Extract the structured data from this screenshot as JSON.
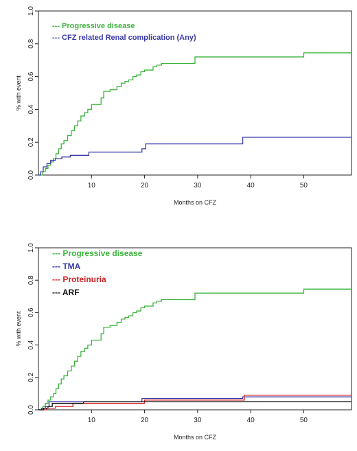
{
  "chart_data": [
    {
      "type": "line",
      "step": true,
      "xlabel": "Months on CFZ",
      "ylabel": "% with event",
      "xlim": [
        0,
        59
      ],
      "ylim": [
        0,
        1.0
      ],
      "xticks": [
        "10",
        "20",
        "30",
        "40",
        "50"
      ],
      "yticks": [
        "0.0",
        "0.2",
        "0.4",
        "0.6",
        "0.8",
        "1.0"
      ],
      "legend_position": "top-left",
      "series": [
        {
          "name": "Progressive disease",
          "legend_text": "--- Progressive disease",
          "color": "#3cb43c",
          "x": [
            0,
            0.8,
            1.3,
            1.8,
            2.3,
            2.8,
            3.3,
            3.8,
            4.3,
            4.8,
            5.5,
            6.2,
            6.8,
            7.4,
            8.0,
            8.7,
            9.3,
            10.0,
            11.8,
            12.3,
            13.5,
            14.8,
            15.6,
            16.3,
            17.0,
            17.8,
            18.5,
            19.3,
            20.0,
            21.6,
            22.3,
            23.2,
            29.5,
            50.0,
            59.0
          ],
          "y": [
            0,
            0.02,
            0.04,
            0.06,
            0.08,
            0.1,
            0.13,
            0.16,
            0.19,
            0.21,
            0.24,
            0.27,
            0.3,
            0.33,
            0.36,
            0.38,
            0.4,
            0.43,
            0.47,
            0.51,
            0.52,
            0.54,
            0.56,
            0.57,
            0.58,
            0.6,
            0.61,
            0.63,
            0.64,
            0.66,
            0.67,
            0.68,
            0.72,
            0.745,
            0.745
          ]
        },
        {
          "name": "CFZ related Renal complication (Any)",
          "legend_text": "--- CFZ related Renal complication (Any)",
          "color": "#3a3aa8",
          "x": [
            0,
            0.4,
            0.9,
            1.6,
            2.3,
            3.2,
            4.4,
            6.0,
            9.5,
            19.5,
            20.2,
            38.5,
            59.0
          ],
          "y": [
            0,
            0.02,
            0.05,
            0.07,
            0.09,
            0.1,
            0.11,
            0.12,
            0.14,
            0.16,
            0.19,
            0.23,
            0.23
          ]
        }
      ]
    },
    {
      "type": "line",
      "step": true,
      "xlabel": "Months on CFZ",
      "ylabel": "% with event",
      "xlim": [
        0,
        59
      ],
      "ylim": [
        0,
        1.0
      ],
      "xticks": [
        "10",
        "20",
        "30",
        "40",
        "50"
      ],
      "yticks": [
        "0.0",
        "0.2",
        "0.4",
        "0.6",
        "0.8",
        "1.0"
      ],
      "legend_position": "top-left",
      "series": [
        {
          "name": "Progressive disease",
          "legend_text": "--- Progressive disease",
          "color": "#3cb43c",
          "x": [
            0,
            0.8,
            1.3,
            1.8,
            2.3,
            2.8,
            3.3,
            3.8,
            4.3,
            4.8,
            5.5,
            6.2,
            6.8,
            7.4,
            8.0,
            8.7,
            9.3,
            10.0,
            11.8,
            12.3,
            13.5,
            14.8,
            15.6,
            16.3,
            17.0,
            17.8,
            18.5,
            19.3,
            20.0,
            21.6,
            22.3,
            23.2,
            29.5,
            50.0,
            59.0
          ],
          "y": [
            0,
            0.02,
            0.04,
            0.06,
            0.08,
            0.1,
            0.13,
            0.16,
            0.19,
            0.21,
            0.24,
            0.27,
            0.3,
            0.33,
            0.36,
            0.38,
            0.4,
            0.43,
            0.47,
            0.51,
            0.52,
            0.54,
            0.56,
            0.57,
            0.58,
            0.6,
            0.61,
            0.63,
            0.64,
            0.66,
            0.67,
            0.68,
            0.72,
            0.745,
            0.745
          ]
        },
        {
          "name": "TMA",
          "legend_text": "--- TMA",
          "color": "#3a3aa8",
          "x": [
            0,
            0.6,
            1.3,
            2.0,
            19.5,
            38.5,
            59.0
          ],
          "y": [
            0,
            0.01,
            0.02,
            0.05,
            0.07,
            0.08,
            0.08
          ]
        },
        {
          "name": "Proteinuria",
          "legend_text": "--- Proteinuria",
          "color": "#cc2222",
          "x": [
            0,
            1.5,
            3.2,
            6.5,
            20.0,
            38.8,
            59.0
          ],
          "y": [
            0,
            0.01,
            0.02,
            0.04,
            0.06,
            0.09,
            0.09
          ]
        },
        {
          "name": "ARF",
          "legend_text": "--- ARF",
          "color": "#111111",
          "x": [
            0,
            1.0,
            1.8,
            2.6,
            8.5,
            59.0
          ],
          "y": [
            0,
            0.01,
            0.02,
            0.04,
            0.05,
            0.05
          ]
        }
      ]
    }
  ]
}
